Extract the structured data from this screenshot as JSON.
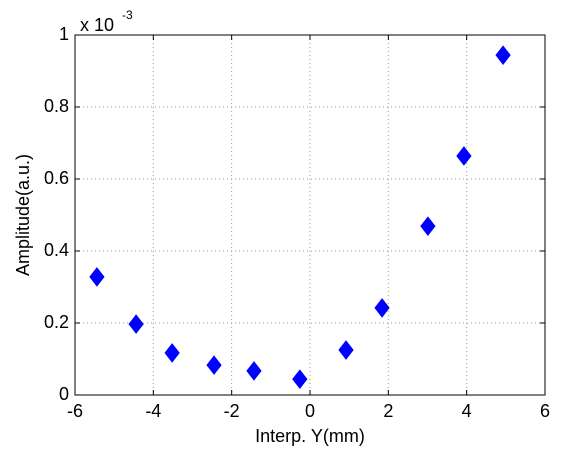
{
  "chart_data": {
    "type": "scatter",
    "x_label": "Interp. Y(mm)",
    "y_label": "Amplitude(a.u.)",
    "y_multiplier_base": "x 10",
    "y_multiplier_power": "-3",
    "x": [
      -5.44,
      -4.44,
      -3.52,
      -2.45,
      -1.43,
      -0.26,
      0.92,
      1.84,
      3.01,
      3.93,
      4.93
    ],
    "y": [
      0.328,
      0.197,
      0.117,
      0.083,
      0.067,
      0.044,
      0.125,
      0.242,
      0.469,
      0.664,
      0.944
    ],
    "color": "#0000ff",
    "marker": "diamond",
    "xlim": [
      -6,
      6
    ],
    "xticks": [
      -6,
      -4,
      -2,
      0,
      2,
      4,
      6
    ],
    "ylim": [
      0,
      1
    ],
    "yticks": [
      0,
      0.2,
      0.4,
      0.6,
      0.8,
      1
    ],
    "grid": true
  }
}
